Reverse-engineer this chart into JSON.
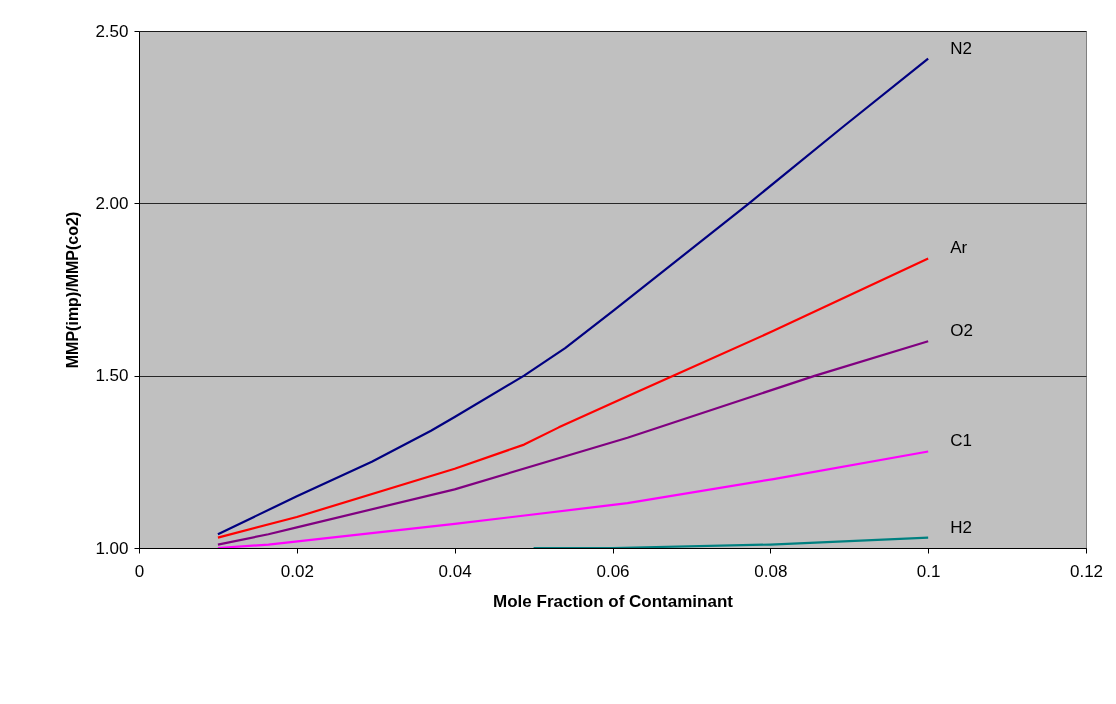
{
  "chart_data": {
    "type": "line",
    "xlabel": "Mole Fraction of Contaminant",
    "ylabel": "MMP(imp)/MMP(co2)",
    "xlim": [
      0,
      0.12
    ],
    "xticks": [
      0,
      0.02,
      0.04,
      0.06,
      0.08,
      0.1,
      0.12
    ],
    "ylim": [
      1,
      2.5
    ],
    "yticks": [
      {
        "value": 1,
        "label": "1.00"
      },
      {
        "value": 1.5,
        "label": "1.50"
      },
      {
        "value": 2,
        "label": "2.00"
      },
      {
        "value": 2.5,
        "label": "2.50"
      }
    ],
    "grid": "y",
    "legend": false,
    "marker": "none",
    "line_style": "solid",
    "series": [
      {
        "name": "N2",
        "color": "#000080",
        "x": [
          0.01,
          0.02,
          0.0295,
          0.037,
          0.04,
          0.0488,
          0.054,
          0.0602,
          0.0773,
          0.0891,
          0.1
        ],
        "values": [
          1.04,
          1.15,
          1.25,
          1.34,
          1.38,
          1.5,
          1.58,
          1.69,
          2.0,
          2.22,
          2.42
        ]
      },
      {
        "name": "Ar",
        "color": "#ff0000",
        "x": [
          0.01,
          0.02,
          0.04,
          0.0488,
          0.0532,
          0.0619,
          0.0677,
          0.0804,
          0.1
        ],
        "values": [
          1.03,
          1.09,
          1.23,
          1.3,
          1.35,
          1.44,
          1.5,
          1.63,
          1.84
        ]
      },
      {
        "name": "O2",
        "color": "#800080",
        "x": [
          0.01,
          0.0164,
          0.02,
          0.04,
          0.0619,
          0.0857,
          0.1
        ],
        "values": [
          1.01,
          1.04,
          1.06,
          1.17,
          1.32,
          1.5,
          1.6
        ]
      },
      {
        "name": "C1",
        "color": "#ff00ff",
        "x": [
          0.01,
          0.0164,
          0.04,
          0.0619,
          0.0804,
          0.1
        ],
        "values": [
          1.0,
          1.01,
          1.07,
          1.13,
          1.2,
          1.28
        ]
      },
      {
        "name": "H2",
        "color": "#008080",
        "x": [
          0.05,
          0.06,
          0.08,
          0.1
        ],
        "values": [
          1.0,
          1.0,
          1.01,
          1.03
        ]
      }
    ]
  }
}
